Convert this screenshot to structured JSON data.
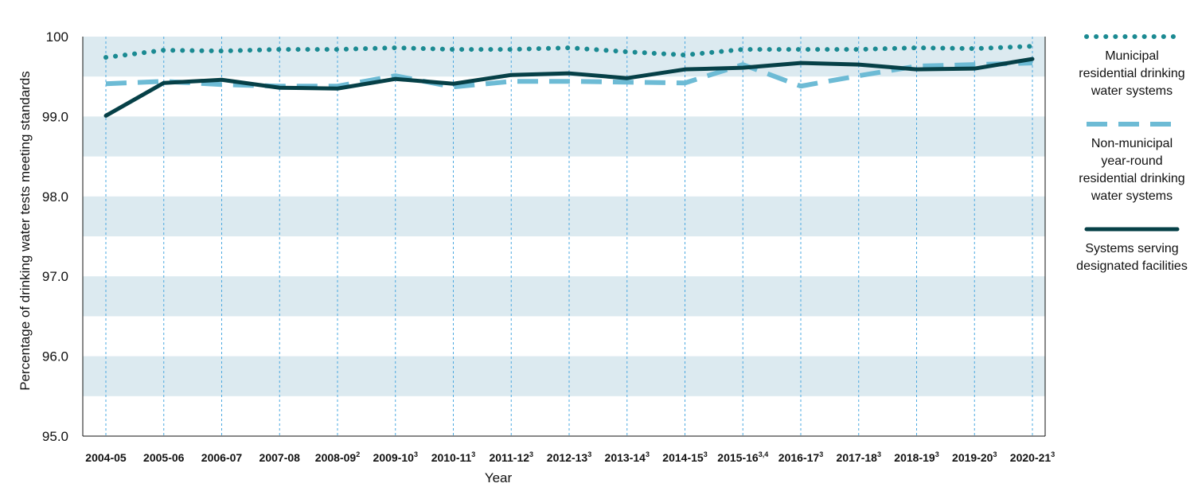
{
  "chart_data": {
    "type": "line",
    "title": "",
    "ylabel": "Percentage of drinking water tests meeting standards",
    "xlabel": "Year",
    "ylim": [
      95.0,
      100
    ],
    "yticks": [
      "95.0",
      "96.0",
      "97.0",
      "98.0",
      "99.0",
      "100"
    ],
    "grid": "vertical dotted gridlines, horizontal bands",
    "legend_position": "right",
    "categories": [
      {
        "label": "2004-05",
        "sup": ""
      },
      {
        "label": "2005-06",
        "sup": ""
      },
      {
        "label": "2006-07",
        "sup": ""
      },
      {
        "label": "2007-08",
        "sup": ""
      },
      {
        "label": "2008-09",
        "sup": "2"
      },
      {
        "label": "2009-10",
        "sup": "3"
      },
      {
        "label": "2010-11",
        "sup": "3"
      },
      {
        "label": "2011-12",
        "sup": "3"
      },
      {
        "label": "2012-13",
        "sup": "3"
      },
      {
        "label": "2013-14",
        "sup": "3"
      },
      {
        "label": "2014-15",
        "sup": "3"
      },
      {
        "label": "2015-16",
        "sup": "3,4"
      },
      {
        "label": "2016-17",
        "sup": "3"
      },
      {
        "label": "2017-18",
        "sup": "3"
      },
      {
        "label": "2018-19",
        "sup": "3"
      },
      {
        "label": "2019-20",
        "sup": "3"
      },
      {
        "label": "2020-21",
        "sup": "3"
      }
    ],
    "series": [
      {
        "name": "Municipal residential drinking water systems",
        "style": "dotted",
        "color": "#1b8a92",
        "values": [
          99.74,
          99.83,
          99.82,
          99.84,
          99.84,
          99.86,
          99.84,
          99.84,
          99.86,
          99.81,
          99.77,
          99.84,
          99.84,
          99.84,
          99.86,
          99.85,
          99.88
        ]
      },
      {
        "name": "Non-municipal year-round residential drinking water systems",
        "style": "dashed",
        "color": "#6dbbd5",
        "values": [
          99.41,
          99.44,
          99.4,
          99.38,
          99.38,
          99.51,
          99.37,
          99.44,
          99.44,
          99.43,
          99.42,
          99.65,
          99.38,
          99.51,
          99.63,
          99.65,
          99.67
        ]
      },
      {
        "name": "Systems serving designated facilities",
        "style": "solid",
        "color": "#064047",
        "values": [
          99.01,
          99.42,
          99.46,
          99.36,
          99.35,
          99.47,
          99.41,
          99.52,
          99.54,
          99.48,
          99.59,
          99.61,
          99.67,
          99.65,
          99.59,
          99.6,
          99.72
        ]
      }
    ],
    "colors": {
      "band": "#dceaf0",
      "vgrid": "#4aa8e0",
      "axis": "#111111"
    }
  }
}
